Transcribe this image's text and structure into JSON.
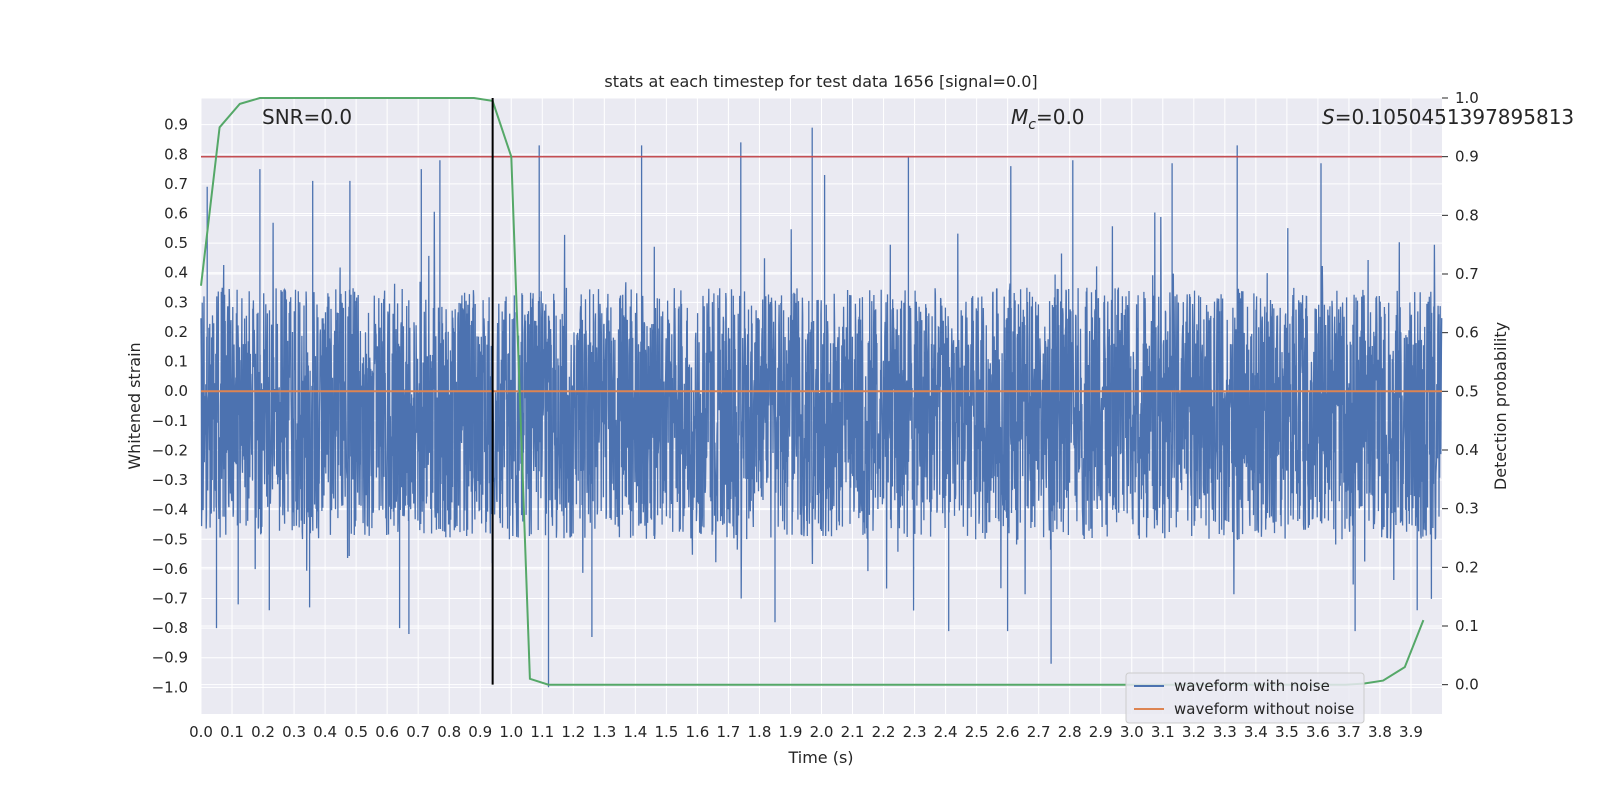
{
  "chart_data": {
    "type": "line",
    "title": "stats at each timestep for test data 1656 [signal=0.0]",
    "xlabel": "Time (s)",
    "ylabel": "Whitened strain",
    "y2label": "Detection probability",
    "xlim": [
      0.0,
      4.0
    ],
    "ylim": [
      -1.09,
      0.99
    ],
    "y2lim": [
      -0.05,
      1.0
    ],
    "x_ticks": [
      "0.0",
      "0.1",
      "0.2",
      "0.3",
      "0.4",
      "0.5",
      "0.6",
      "0.7",
      "0.8",
      "0.9",
      "1.0",
      "1.1",
      "1.2",
      "1.3",
      "1.4",
      "1.5",
      "1.6",
      "1.7",
      "1.8",
      "1.9",
      "2.0",
      "2.1",
      "2.2",
      "2.3",
      "2.4",
      "2.5",
      "2.6",
      "2.7",
      "2.8",
      "2.9",
      "3.0",
      "3.1",
      "3.2",
      "3.3",
      "3.4",
      "3.5",
      "3.6",
      "3.7",
      "3.8",
      "3.9"
    ],
    "y_ticks": [
      "0.9",
      "0.8",
      "0.7",
      "0.6",
      "0.5",
      "0.4",
      "0.3",
      "0.2",
      "0.1",
      "0.0",
      "−0.1",
      "−0.2",
      "−0.3",
      "−0.4",
      "−0.5",
      "−0.6",
      "−0.7",
      "−0.8",
      "−0.9",
      "−1.0"
    ],
    "y2_ticks": [
      "1.0",
      "0.9",
      "0.8",
      "0.7",
      "0.6",
      "0.5",
      "0.4",
      "0.3",
      "0.2",
      "0.1",
      "0.0"
    ],
    "annotations": {
      "snr": "SNR=0.0",
      "mc_symbol": "M",
      "mc_sub": "c",
      "mc_value": "=0.0",
      "s_symbol": "S",
      "s_value": "=0.1050451397895813"
    },
    "threshold_y2": 0.9,
    "marker_time": 0.94,
    "noise": {
      "name": "waveform with noise",
      "samples": 4096,
      "typical_min": -0.5,
      "typical_max": 0.35,
      "spikes": [
        [
          0.02,
          0.69
        ],
        [
          0.19,
          0.75
        ],
        [
          0.36,
          0.71
        ],
        [
          0.48,
          0.71
        ],
        [
          0.71,
          0.75
        ],
        [
          0.77,
          0.78
        ],
        [
          1.09,
          0.83
        ],
        [
          1.42,
          0.83
        ],
        [
          1.74,
          0.84
        ],
        [
          1.97,
          0.89
        ],
        [
          2.01,
          0.73
        ],
        [
          2.28,
          0.79
        ],
        [
          2.61,
          0.76
        ],
        [
          2.81,
          0.78
        ],
        [
          3.13,
          0.77
        ],
        [
          3.34,
          0.83
        ],
        [
          3.61,
          0.77
        ],
        [
          0.05,
          -0.8
        ],
        [
          0.12,
          -0.72
        ],
        [
          0.22,
          -0.74
        ],
        [
          0.35,
          -0.73
        ],
        [
          0.64,
          -0.8
        ],
        [
          0.67,
          -0.82
        ],
        [
          1.12,
          -1.0
        ],
        [
          1.26,
          -0.83
        ],
        [
          1.85,
          -0.78
        ],
        [
          2.41,
          -0.81
        ],
        [
          2.6,
          -0.81
        ],
        [
          2.74,
          -0.92
        ],
        [
          3.72,
          -0.81
        ],
        [
          3.92,
          -0.74
        ]
      ]
    },
    "clean": {
      "name": "waveform without noise",
      "value": 0.0
    },
    "detection_probability": {
      "x": [
        0.0,
        0.06,
        0.125,
        0.19,
        0.25,
        0.5,
        0.75,
        0.88,
        0.94,
        1.0,
        1.06,
        1.12,
        1.19,
        1.5,
        2.0,
        2.5,
        3.0,
        3.5,
        3.69,
        3.75,
        3.81,
        3.88,
        3.94
      ],
      "y": [
        0.68,
        0.95,
        0.99,
        1.0,
        1.0,
        1.0,
        1.0,
        1.0,
        0.995,
        0.9,
        0.01,
        0.0,
        0.0,
        0.0,
        0.0,
        0.0,
        0.0,
        0.0,
        0.0,
        0.002,
        0.007,
        0.03,
        0.11
      ]
    },
    "legend": {
      "position": "lower-right",
      "entries": [
        "waveform with noise",
        "waveform without noise"
      ]
    },
    "colors": {
      "noise": "#4c72b0",
      "clean": "#dd8452",
      "probability": "#55a868",
      "threshold": "#c44e52",
      "marker": "#000000",
      "plot_bg": "#eaeaf2",
      "grid": "#ffffff"
    }
  }
}
